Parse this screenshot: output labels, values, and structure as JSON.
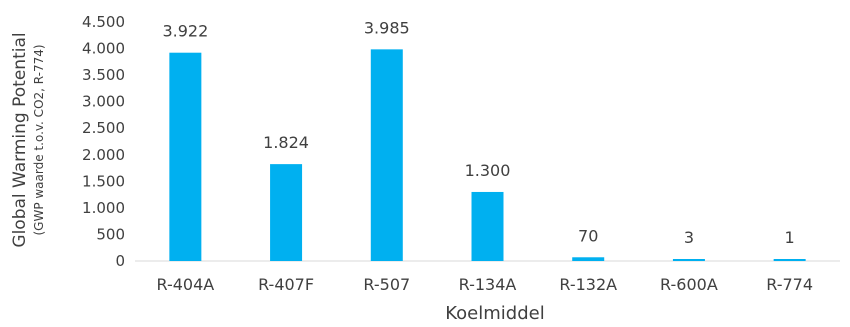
{
  "chart_data": {
    "type": "bar",
    "categories": [
      "R-404A",
      "R-407F",
      "R-507",
      "R-134A",
      "R-132A",
      "R-600A",
      "R-774"
    ],
    "values": [
      3922,
      1824,
      3985,
      1300,
      70,
      3,
      1
    ],
    "data_labels": [
      "3.922",
      "1.824",
      "3.985",
      "1.300",
      "70",
      "3",
      "1"
    ],
    "ylim": [
      0,
      4500
    ],
    "yticks": [
      0,
      500,
      1000,
      1500,
      2000,
      2500,
      3000,
      3500,
      4000,
      4500
    ],
    "ytick_labels": [
      "0",
      "500",
      "1.000",
      "1.500",
      "2.000",
      "2.500",
      "3.000",
      "3.500",
      "4.000",
      "4.500"
    ],
    "xlabel": "Koelmiddel",
    "ylabel": "Global Warming Potential",
    "ylabel_sub": "(GWP waarde t.o.v. CO2, R-774)",
    "bar_color": "#00B0F0",
    "grid": false,
    "legend": "none"
  }
}
